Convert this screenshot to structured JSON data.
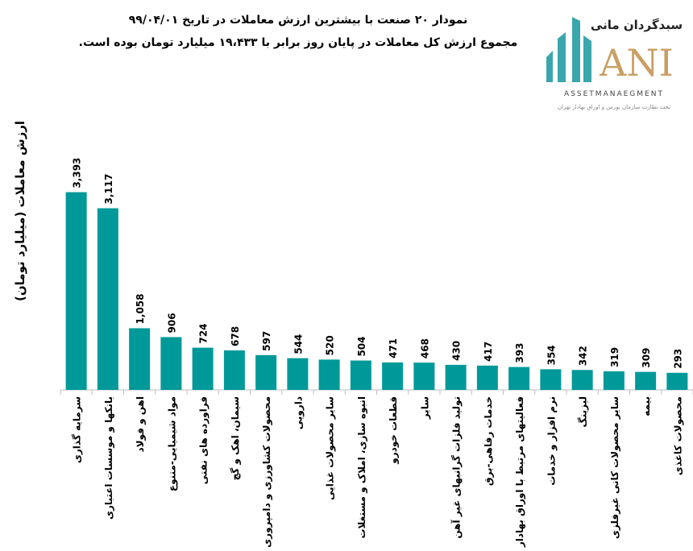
{
  "chart_data": {
    "type": "bar",
    "title": "نمودار ۲۰ صنعت با بیشترین ارزش معاملات در تاریخ ۹۹/۰۴/۰۱",
    "subtitle": "مجموع ارزش کل معاملات در پایان روز برابر با ۱۹،۴۳۳ میلیارد تومان بوده است.",
    "xlabel": "",
    "ylabel": "ارزش معاملات (میلیارد تومان)",
    "ylim": [
      0,
      4700
    ],
    "grid": false,
    "bar_color": "#009999",
    "categories": [
      "سرمایه گذاری",
      "بانکها و موسسات اعتباری",
      "اهن و فولاد",
      "مواد شیمیایی-متنوع",
      "فراورده های نفتی",
      "سیمان، اهک و گچ",
      "محصولات کشاورزی و دامپروری",
      "دارویی",
      "سایر محصولات غذایی",
      "انبوه سازی، املاک و مستغلات",
      "قطعات خودرو",
      "سایر",
      "تولید فلزات گرانبهای غیر آهن",
      "خدمات رفاهی-برق",
      "فعالیتهای مرتبط با اوراق بهادار",
      "نرم افزار و خدمات",
      "لیزینگ",
      "سایر محصولات کانی غیرفلزی",
      "بیمه",
      "محصولات کاغذی"
    ],
    "values": [
      3393,
      3117,
      1058,
      906,
      724,
      678,
      597,
      544,
      520,
      504,
      471,
      468,
      430,
      417,
      393,
      354,
      342,
      319,
      309,
      293
    ],
    "value_labels": [
      "3,393",
      "3,117",
      "1,058",
      "906",
      "724",
      "678",
      "597",
      "544",
      "520",
      "504",
      "471",
      "468",
      "430",
      "417",
      "393",
      "354",
      "342",
      "319",
      "309",
      "293"
    ]
  },
  "logo": {
    "name": "سبدگردان مانی",
    "mark": "ANI",
    "tagline": "ASSETMANAEGMENT",
    "subtext": "تحت نظارت سازمان بورس و اوراق بهادار تهران"
  }
}
